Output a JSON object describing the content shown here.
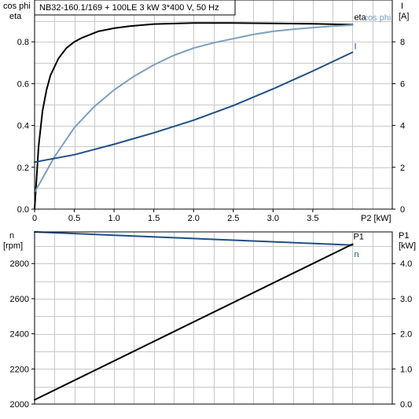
{
  "chart_data": [
    {
      "type": "line",
      "title": "NB32-160.1/169 + 100LE   3 kW   3*400 V, 50 Hz",
      "xlabel": "P2 [kW]",
      "ylabel_left": [
        "cos phi",
        "eta"
      ],
      "ylabel_right": [
        "I",
        "[A]"
      ],
      "xlim": [
        0,
        4.5
      ],
      "ylim_left": [
        0,
        1.0
      ],
      "ylim_right": [
        0,
        10
      ],
      "x_ticks": [
        "0",
        "0.5",
        "1.0",
        "1.5",
        "2.0",
        "2.5",
        "3.0",
        "3.5"
      ],
      "y_ticks_left": [
        "0.0",
        "0.2",
        "0.4",
        "0.6",
        "0.8"
      ],
      "y_ticks_right": [
        "0",
        "2",
        "4",
        "6",
        "8"
      ],
      "grid": true,
      "colors": {
        "eta": "#000000",
        "cos_phi": "#7a9fc0",
        "I": "#1f4e86"
      },
      "series": [
        {
          "name": "eta",
          "axis": "left",
          "x": [
            0,
            0.05,
            0.1,
            0.15,
            0.2,
            0.3,
            0.4,
            0.5,
            0.6,
            0.7,
            0.8,
            1.0,
            1.2,
            1.5,
            2.0,
            2.5,
            3.0,
            3.5,
            4.0
          ],
          "y": [
            0.0,
            0.3,
            0.47,
            0.57,
            0.64,
            0.72,
            0.77,
            0.8,
            0.82,
            0.835,
            0.85,
            0.865,
            0.875,
            0.885,
            0.89,
            0.89,
            0.888,
            0.886,
            0.882
          ]
        },
        {
          "name": "cos phi",
          "axis": "left",
          "x": [
            0,
            0.25,
            0.5,
            0.75,
            1.0,
            1.25,
            1.5,
            1.75,
            2.0,
            2.25,
            2.5,
            2.75,
            3.0,
            3.25,
            3.5,
            3.75,
            4.0
          ],
          "y": [
            0.08,
            0.25,
            0.39,
            0.49,
            0.57,
            0.635,
            0.69,
            0.735,
            0.77,
            0.795,
            0.815,
            0.835,
            0.85,
            0.86,
            0.868,
            0.875,
            0.88
          ]
        },
        {
          "name": "I",
          "axis": "right",
          "x": [
            0,
            0.5,
            1.0,
            1.5,
            2.0,
            2.5,
            3.0,
            3.5,
            4.0
          ],
          "y": [
            2.25,
            2.6,
            3.1,
            3.65,
            4.25,
            4.95,
            5.75,
            6.6,
            7.5
          ]
        }
      ]
    },
    {
      "type": "line",
      "title": "",
      "xlabel": "",
      "ylabel_left": [
        "n",
        "[rpm]"
      ],
      "ylabel_right": [
        "P1",
        "[kW]"
      ],
      "xlim": [
        0,
        4.5
      ],
      "ylim_left": [
        2000,
        2980
      ],
      "ylim_right": [
        0,
        4.9
      ],
      "y_ticks_left": [
        "2000",
        "2200",
        "2400",
        "2600",
        "2800"
      ],
      "y_ticks_right": [
        "0.0",
        "1.0",
        "2.0",
        "3.0",
        "4.0"
      ],
      "grid": true,
      "colors": {
        "n": "#1f4e86",
        "P1": "#000000"
      },
      "series": [
        {
          "name": "n",
          "axis": "left",
          "x": [
            0,
            4.0
          ],
          "y": [
            2980,
            2905
          ]
        },
        {
          "name": "P1",
          "axis": "right",
          "x": [
            0,
            4.0
          ],
          "y": [
            0.12,
            4.55
          ]
        }
      ]
    }
  ]
}
